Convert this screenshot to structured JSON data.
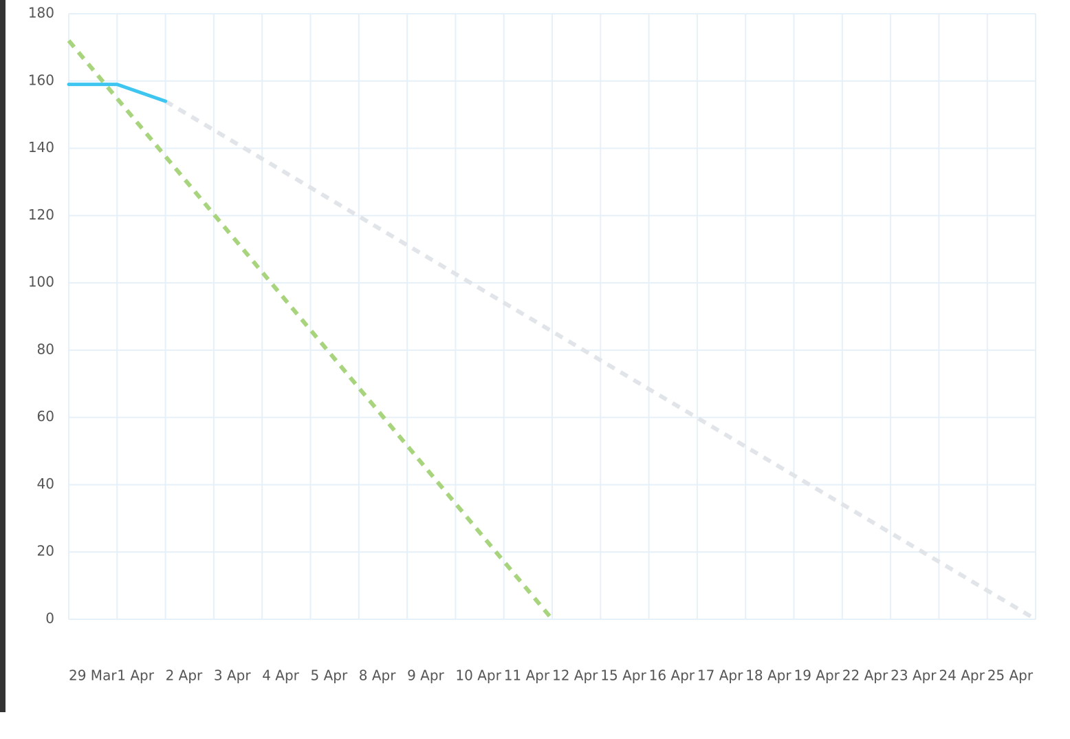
{
  "chart_data": {
    "type": "line",
    "categories": [
      "29 Mar",
      "1 Apr",
      "2 Apr",
      "3 Apr",
      "4 Apr",
      "5 Apr",
      "8 Apr",
      "9 Apr",
      "10 Apr",
      "11 Apr",
      "12 Apr",
      "15 Apr",
      "16 Apr",
      "17 Apr",
      "18 Apr",
      "19 Apr",
      "22 Apr",
      "23 Apr",
      "24 Apr",
      "25 Apr",
      null
    ],
    "series": [
      {
        "color": "#a8d47e",
        "dashed": true,
        "values": [
          172,
          154.8,
          137.6,
          120.4,
          103.2,
          86,
          68.8,
          51.6,
          34.4,
          17.2,
          0,
          null,
          null,
          null,
          null,
          null,
          null,
          null,
          null,
          null,
          null
        ]
      },
      {
        "color": "#e1e4e8",
        "dashed": true,
        "values": [
          null,
          null,
          154,
          145.44,
          136.89,
          128.33,
          119.78,
          111.22,
          102.67,
          94.11,
          85.56,
          77,
          68.44,
          59.89,
          51.33,
          42.78,
          34.22,
          25.67,
          17.11,
          8.56,
          0
        ]
      },
      {
        "color": "#3ec6f0",
        "dashed": false,
        "values": [
          159,
          159,
          154,
          null,
          null,
          null,
          null,
          null,
          null,
          null,
          null,
          null,
          null,
          null,
          null,
          null,
          null,
          null,
          null,
          null,
          null
        ]
      }
    ],
    "ylim": [
      0,
      180
    ],
    "yticks": [
      0,
      20,
      40,
      60,
      80,
      100,
      120,
      140,
      160,
      180
    ],
    "grid": true
  }
}
